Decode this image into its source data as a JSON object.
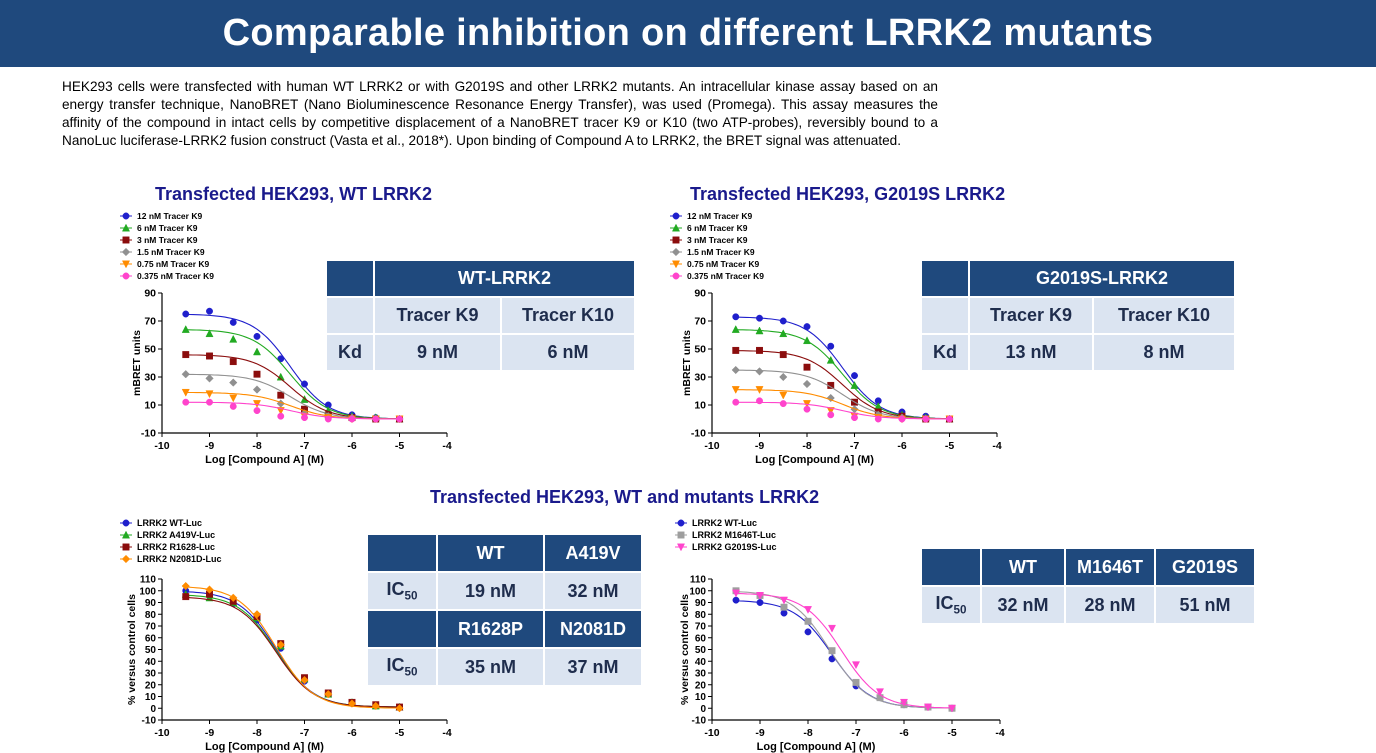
{
  "banner": {
    "title": "Comparable inhibition on different LRRK2 mutants"
  },
  "intro": "HEK293 cells were transfected with human WT LRRK2 or with G2019S and other LRRK2 mutants. An intracellular kinase assay based on an energy transfer technique, NanoBRET (Nano Bioluminescence Resonance Energy Transfer), was used (Promega). This assay measures the affinity of the compound in intact cells by competitive displacement of a NanoBRET tracer K9 or K10 (two ATP-probes), reversibly bound to a NanoLuc luciferase-LRRK2 fusion construct (Vasta et al., 2018*). Upon binding of Compound A to LRRK2, the BRET signal was attenuated.",
  "sections": {
    "wt_title": "Transfected HEK293, WT LRRK2",
    "g2019s_title": "Transfected HEK293, G2019S LRRK2",
    "mutants_title": "Transfected HEK293, WT and mutants LRRK2"
  },
  "colors": {
    "banner": "#1f497d",
    "section_title": "#1a1a8c",
    "table_header": "#1f497d",
    "table_body": "#dbe4f1",
    "blue": "#1f1fcc",
    "green": "#22aa22",
    "darkred": "#8b0d0d",
    "gray": "#909090",
    "orange": "#ff8c00",
    "pink": "#ff44cc"
  },
  "tables": {
    "wt": {
      "header": "WT-LRRK2",
      "col1": "Tracer K9",
      "col2": "Tracer K10",
      "row_label": "Kd",
      "v1": "9 nM",
      "v2": "6 nM"
    },
    "g2019s": {
      "header": "G2019S-LRRK2",
      "col1": "Tracer K9",
      "col2": "Tracer K10",
      "row_label": "Kd",
      "v1": "13 nM",
      "v2": "8 nM"
    },
    "mutants1": {
      "h1": "WT",
      "h2": "A419V",
      "v1": "19 nM",
      "v2": "32 nM",
      "h3": "R1628P",
      "h4": "N2081D",
      "v3": "35 nM",
      "v4": "37 nM",
      "ic_main": "IC",
      "ic_sub": "50"
    },
    "mutants2": {
      "h1": "WT",
      "h2": "M1646T",
      "h3": "G2019S",
      "v1": "32 nM",
      "v2": "28 nM",
      "v3": "51 nM",
      "ic_main": "IC",
      "ic_sub": "50"
    }
  },
  "chart_data": [
    {
      "type": "scatter",
      "xlabel": "Log [Compound A] (M)",
      "ylabel": "mBRET units",
      "xlim": [
        -10,
        -4
      ],
      "ylim": [
        -10,
        90
      ],
      "xticks": [
        -10,
        -9,
        -8,
        -7,
        -6,
        -5,
        -4
      ],
      "yticks": [
        -10,
        10,
        30,
        50,
        70,
        90
      ],
      "ytick_labels": [
        "-10",
        "10",
        "30",
        "50",
        "70",
        "90"
      ],
      "x": [
        -9.5,
        -9,
        -8.5,
        -8,
        -7.5,
        -7,
        -6.5,
        -6,
        -5.5,
        -5
      ],
      "legend_position": "top-left",
      "fit_logIC50": -7.3,
      "series": [
        {
          "name": "12 nM Tracer K9",
          "color": "#1f1fcc",
          "marker": "circle",
          "values": [
            75,
            77,
            69,
            59,
            43,
            25,
            10,
            3,
            1,
            0
          ]
        },
        {
          "name": "6 nM Tracer K9",
          "color": "#22aa22",
          "marker": "triangle-up",
          "values": [
            64,
            61,
            57,
            48,
            30,
            14,
            6,
            2,
            1,
            0
          ]
        },
        {
          "name": "3 nM Tracer K9",
          "color": "#8b0d0d",
          "marker": "square",
          "values": [
            46,
            45,
            41,
            32,
            17,
            7,
            3,
            1,
            0,
            0
          ]
        },
        {
          "name": "1.5 nM Tracer K9",
          "color": "#909090",
          "marker": "diamond",
          "values": [
            32,
            29,
            26,
            21,
            11,
            4,
            2,
            1,
            0,
            0
          ]
        },
        {
          "name": "0.75 nM Tracer K9",
          "color": "#ff8c00",
          "marker": "triangle-down",
          "values": [
            19,
            18,
            15,
            11,
            6,
            2,
            1,
            0,
            0,
            0
          ]
        },
        {
          "name": "0.375 nM Tracer K9",
          "color": "#ff44cc",
          "marker": "circle",
          "values": [
            12,
            12,
            9,
            6,
            2,
            1,
            0,
            0,
            0,
            0
          ]
        }
      ]
    },
    {
      "type": "scatter",
      "xlabel": "Log [Compound A] (M)",
      "ylabel": "mBRET units",
      "xlim": [
        -10,
        -4
      ],
      "ylim": [
        -10,
        90
      ],
      "xticks": [
        -10,
        -9,
        -8,
        -7,
        -6,
        -5,
        -4
      ],
      "yticks": [
        -10,
        10,
        30,
        50,
        70,
        90
      ],
      "ytick_labels": [
        "-10",
        "10",
        "30",
        "50",
        "70",
        "90"
      ],
      "x": [
        -9.5,
        -9,
        -8.5,
        -8,
        -7.5,
        -7,
        -6.5,
        -6,
        -5.5,
        -5
      ],
      "legend_position": "top-left",
      "fit_logIC50": -7.25,
      "series": [
        {
          "name": "12 nM Tracer K9",
          "color": "#1f1fcc",
          "marker": "circle",
          "values": [
            73,
            72,
            70,
            66,
            52,
            31,
            13,
            5,
            2,
            0
          ]
        },
        {
          "name": "6 nM Tracer K9",
          "color": "#22aa22",
          "marker": "triangle-up",
          "values": [
            64,
            63,
            61,
            56,
            42,
            24,
            9,
            3,
            1,
            0
          ]
        },
        {
          "name": "3 nM Tracer K9",
          "color": "#8b0d0d",
          "marker": "square",
          "values": [
            49,
            49,
            46,
            37,
            24,
            12,
            5,
            2,
            0,
            0
          ]
        },
        {
          "name": "1.5 nM Tracer K9",
          "color": "#909090",
          "marker": "diamond",
          "values": [
            35,
            34,
            30,
            25,
            15,
            7,
            3,
            1,
            0,
            0
          ]
        },
        {
          "name": "0.75 nM Tracer K9",
          "color": "#ff8c00",
          "marker": "triangle-down",
          "values": [
            21,
            21,
            17,
            11,
            6,
            2,
            1,
            0,
            0,
            0
          ]
        },
        {
          "name": "0.375 nM Tracer K9",
          "color": "#ff44cc",
          "marker": "circle",
          "values": [
            12,
            13,
            11,
            7,
            3,
            1,
            0,
            0,
            0,
            0
          ]
        }
      ]
    },
    {
      "type": "scatter",
      "xlabel": "Log [Compound A] (M)",
      "ylabel": "% versus control cells",
      "xlim": [
        -10,
        -4
      ],
      "ylim": [
        -10,
        110
      ],
      "xticks": [
        -10,
        -9,
        -8,
        -7,
        -6,
        -5,
        -4
      ],
      "yticks": [
        -10,
        0,
        10,
        20,
        30,
        40,
        50,
        60,
        70,
        80,
        90,
        100,
        110
      ],
      "ytick_labels": [
        "-10",
        "0",
        "10",
        "20",
        "30",
        "40",
        "50",
        "60",
        "70",
        "80",
        "90",
        "100",
        "110"
      ],
      "x": [
        -9.5,
        -9,
        -8.5,
        -8,
        -7.5,
        -7,
        -6.5,
        -6,
        -5.5,
        -5
      ],
      "legend_position": "top-left",
      "fit_logIC50": -7.6,
      "series": [
        {
          "name": "LRRK2 WT-Luc",
          "color": "#1f1fcc",
          "marker": "circle",
          "values": [
            100,
            96,
            89,
            75,
            51,
            23,
            12,
            4,
            2,
            1
          ]
        },
        {
          "name": "LRRK2 A419V-Luc",
          "color": "#22aa22",
          "marker": "triangle-up",
          "values": [
            97,
            94,
            90,
            77,
            53,
            25,
            12,
            5,
            2,
            1
          ]
        },
        {
          "name": "LRRK2 R1628-Luc",
          "color": "#8b0d0d",
          "marker": "square",
          "values": [
            95,
            97,
            91,
            78,
            55,
            26,
            13,
            5,
            3,
            1
          ]
        },
        {
          "name": "LRRK2 N2081D-Luc",
          "color": "#ff8c00",
          "marker": "diamond",
          "values": [
            104,
            101,
            94,
            80,
            54,
            24,
            12,
            4,
            2,
            0
          ]
        }
      ]
    },
    {
      "type": "scatter",
      "xlabel": "Log [Compound A] (M)",
      "ylabel": "% versus control cells",
      "xlim": [
        -10,
        -4
      ],
      "ylim": [
        -10,
        110
      ],
      "xticks": [
        -10,
        -9,
        -8,
        -7,
        -6,
        -5,
        -4
      ],
      "yticks": [
        -10,
        0,
        10,
        20,
        30,
        40,
        50,
        60,
        70,
        80,
        90,
        100,
        110
      ],
      "ytick_labels": [
        "-10",
        "0",
        "10",
        "20",
        "30",
        "40",
        "50",
        "60",
        "70",
        "80",
        "90",
        "100",
        "110"
      ],
      "x": [
        -9.5,
        -9,
        -8.5,
        -8,
        -7.5,
        -7,
        -6.5,
        -6,
        -5.5,
        -5
      ],
      "legend_position": "top-left",
      "series": [
        {
          "name": "LRRK2 WT-Luc",
          "color": "#1f1fcc",
          "marker": "circle",
          "fit_logIC50": -7.5,
          "values": [
            92,
            90,
            81,
            65,
            42,
            19,
            9,
            3,
            1,
            0
          ]
        },
        {
          "name": "LRRK2 M1646T-Luc",
          "color": "#9e9e9e",
          "marker": "square",
          "fit_logIC50": -7.55,
          "values": [
            100,
            96,
            86,
            74,
            49,
            22,
            9,
            3,
            1,
            0
          ]
        },
        {
          "name": "LRRK2 G2019S-Luc",
          "color": "#ff44cc",
          "marker": "triangle-down",
          "fit_logIC50": -7.3,
          "values": [
            98,
            96,
            92,
            84,
            68,
            37,
            14,
            5,
            1,
            0
          ]
        }
      ]
    }
  ]
}
